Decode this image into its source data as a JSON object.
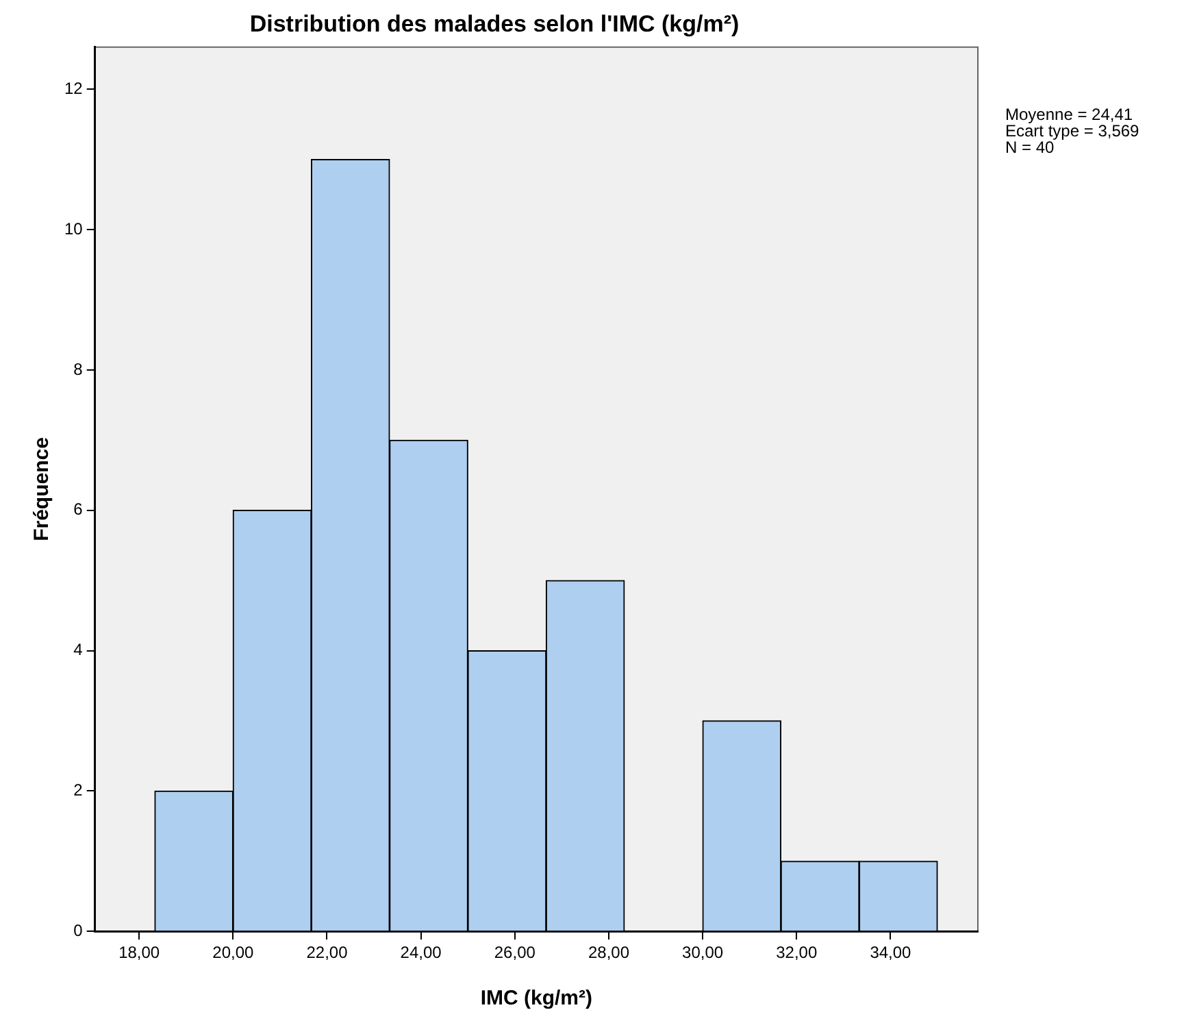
{
  "chart_data": {
    "type": "histogram",
    "title": "Distribution des malades selon l'IMC (kg/m²)",
    "xlabel": "IMC (kg/m²)",
    "ylabel": "Fréquence",
    "bins": [
      18.333,
      20,
      21.667,
      23.333,
      25,
      26.667,
      28.333,
      30,
      31.667,
      33.333,
      35
    ],
    "values": [
      2,
      6,
      11,
      7,
      4,
      5,
      0,
      3,
      1,
      1
    ],
    "color": "#aecff0",
    "xlim": [
      17.06,
      35.86
    ],
    "xticks": [
      {
        "value": 18,
        "label": "18,00"
      },
      {
        "value": 20,
        "label": "20,00"
      },
      {
        "value": 22,
        "label": "22,00"
      },
      {
        "value": 24,
        "label": "24,00"
      },
      {
        "value": 26,
        "label": "26,00"
      },
      {
        "value": 28,
        "label": "28,00"
      },
      {
        "value": 30,
        "label": "30,00"
      },
      {
        "value": 32,
        "label": "32,00"
      },
      {
        "value": 34,
        "label": "34,00"
      }
    ],
    "ylim": [
      0,
      12.6
    ],
    "yticks": [
      0,
      2,
      4,
      6,
      8,
      10,
      12
    ],
    "grid": false,
    "legend": false,
    "annotations": [
      "Moyenne = 24,41",
      "Ecart type = 3,569",
      "N = 40"
    ]
  }
}
